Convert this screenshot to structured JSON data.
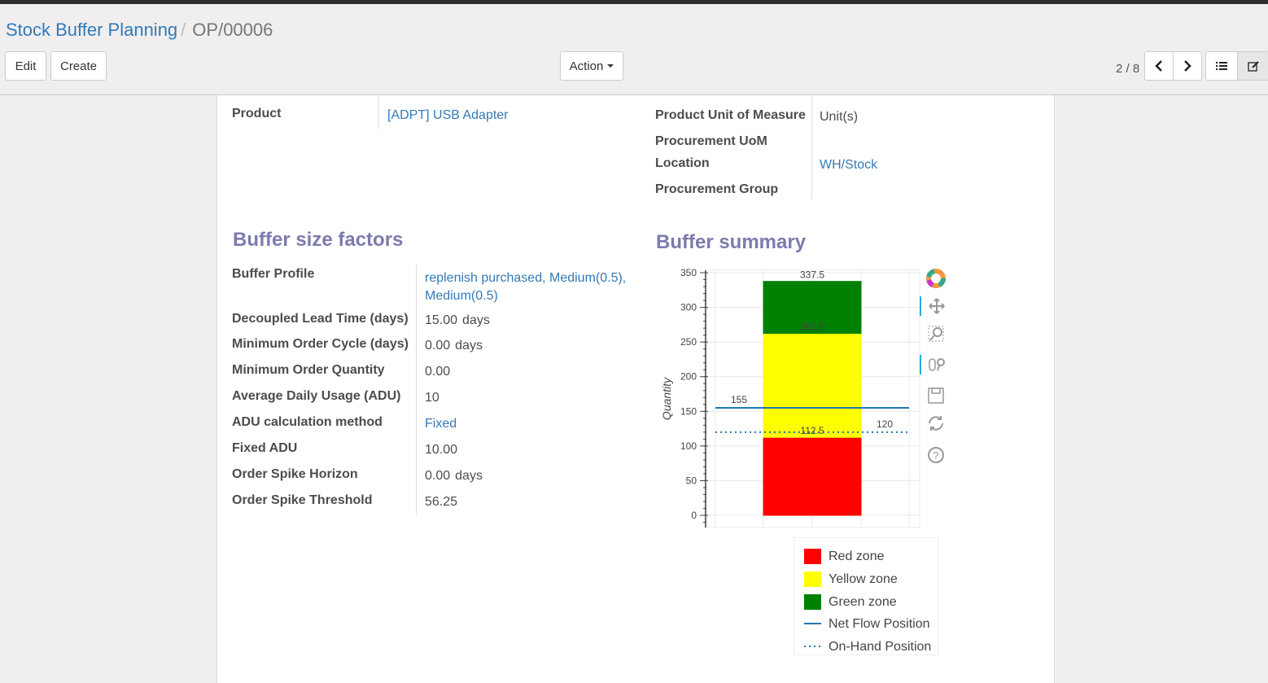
{
  "breadcrumb": {
    "parent": "Stock Buffer Planning",
    "current": "OP/00006"
  },
  "toolbar": {
    "edit": "Edit",
    "create": "Create",
    "action": "Action",
    "pager": "2 / 8"
  },
  "header_fields": {
    "product_label": "Product",
    "product_value": "[ADPT] USB Adapter",
    "uom_label": "Product Unit of Measure",
    "uom_value": "Unit(s)",
    "proc_uom_label": "Procurement UoM",
    "location_label": "Location",
    "location_value": "WH/Stock",
    "proc_group_label": "Procurement Group"
  },
  "factors": {
    "title": "Buffer size factors",
    "rows": [
      {
        "label": "Buffer Profile",
        "value": "replenish purchased, Medium(0.5), Medium(0.5)",
        "link": true
      },
      {
        "label": "Decoupled Lead Time (days)",
        "value": "15.00",
        "unit": "days"
      },
      {
        "label": "Minimum Order Cycle (days)",
        "value": "0.00",
        "unit": "days"
      },
      {
        "label": "Minimum Order Quantity",
        "value": "0.00"
      },
      {
        "label": "Average Daily Usage (ADU)",
        "value": "10"
      },
      {
        "label": "ADU calculation method",
        "value": "Fixed",
        "link": true
      },
      {
        "label": "Fixed ADU",
        "value": "10.00"
      },
      {
        "label": "Order Spike Horizon",
        "value": "0.00",
        "unit": "days"
      },
      {
        "label": "Order Spike Threshold",
        "value": "56.25"
      }
    ]
  },
  "summary": {
    "title": "Buffer summary"
  },
  "chart_data": {
    "type": "bar",
    "stacked": true,
    "ylabel": "Quantity",
    "ylim": [
      0,
      350
    ],
    "yticks": [
      0,
      50,
      100,
      150,
      200,
      250,
      300,
      350
    ],
    "grid": true,
    "zones": [
      {
        "name": "Red zone",
        "bottom": 0,
        "top": 112.5,
        "color": "#ff0000"
      },
      {
        "name": "Yellow zone",
        "bottom": 112.5,
        "top": 262.5,
        "color": "#ffff00"
      },
      {
        "name": "Green zone",
        "bottom": 262.5,
        "top": 337.5,
        "color": "#008000"
      }
    ],
    "bar_labels": [
      "112.5",
      "262.5",
      "337.5"
    ],
    "lines": [
      {
        "name": "Net Flow Position",
        "value": 155,
        "style": "solid",
        "color": "#1f77b4",
        "label": "155"
      },
      {
        "name": "On-Hand Position",
        "value": 120,
        "style": "dotted",
        "color": "#1f77b4",
        "label": "120"
      }
    ],
    "legend_position": "bottom"
  },
  "chart_tools": [
    "bokeh-logo-icon",
    "pan-icon",
    "box-zoom-icon",
    "wheel-zoom-icon",
    "save-icon",
    "reset-icon",
    "help-icon"
  ]
}
